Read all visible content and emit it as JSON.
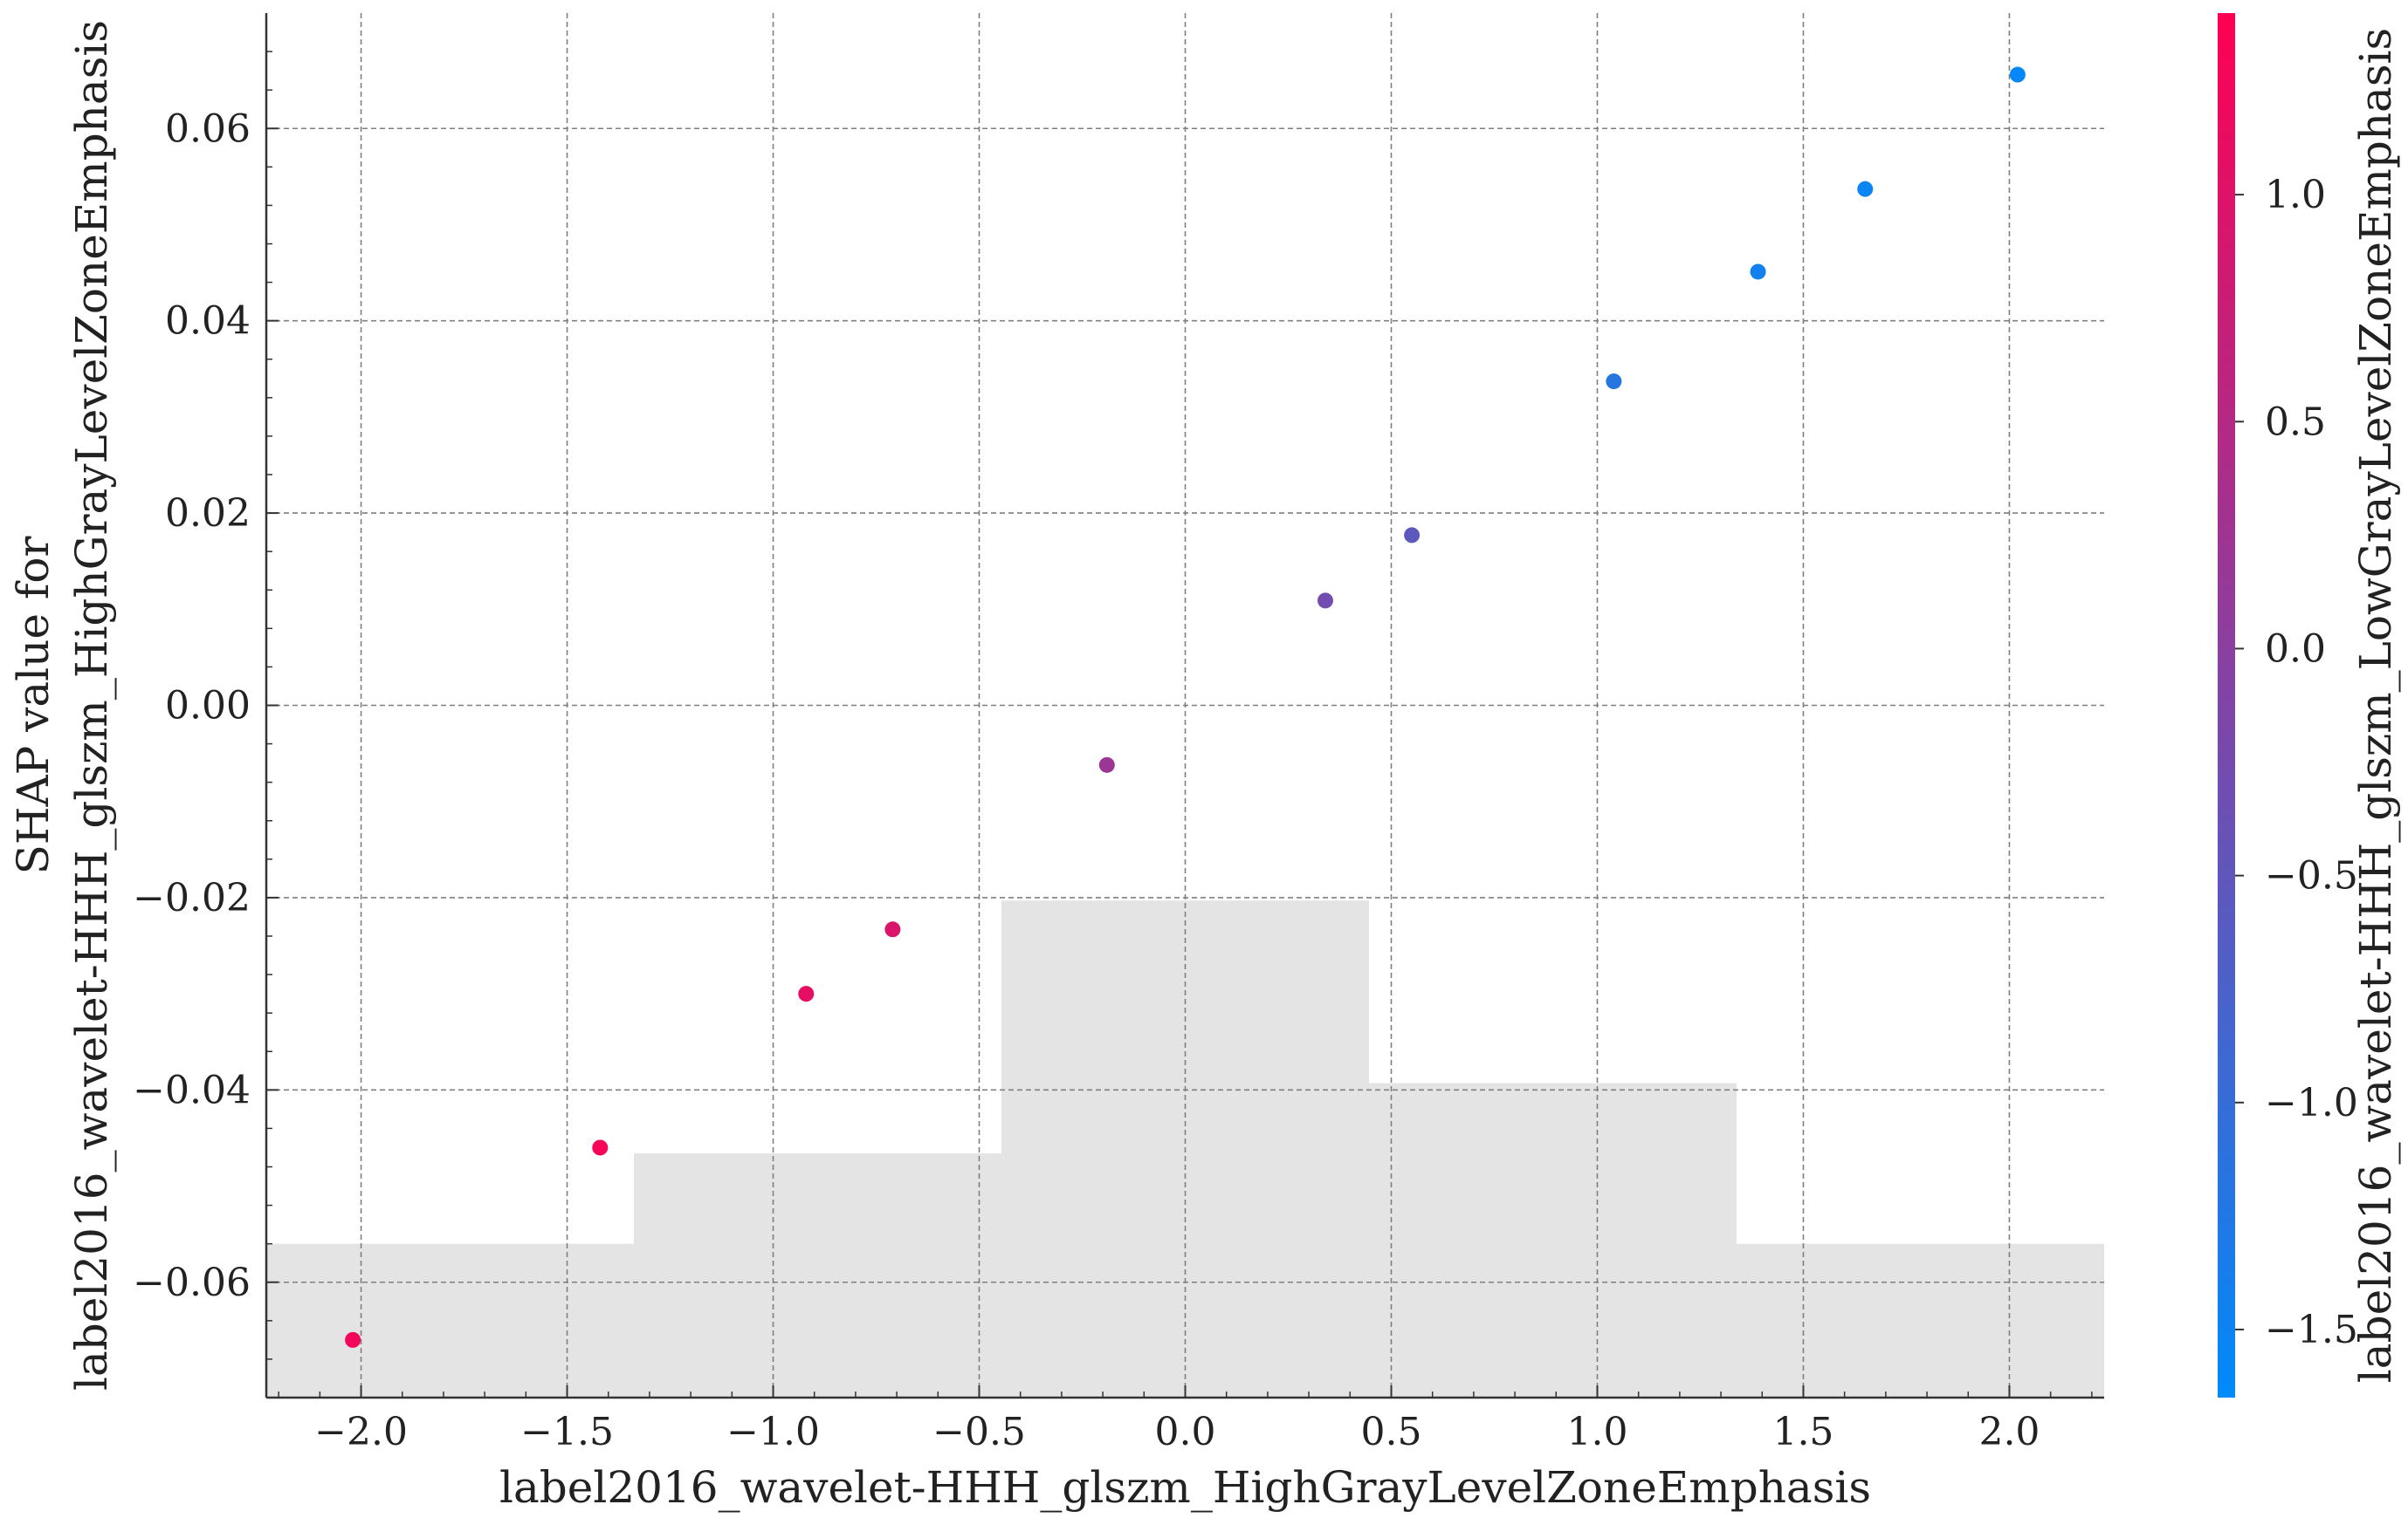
{
  "chart_data": {
    "type": "scatter",
    "xlabel": "label2016_wavelet-HHH_glszm_HighGrayLevelZoneEmphasis",
    "ylabel_lines": [
      "SHAP value for",
      "label2016_wavelet-HHH_glszm_HighGrayLevelZoneEmphasis"
    ],
    "xlim": [
      -2.23,
      2.23
    ],
    "ylim": [
      -0.072,
      0.072
    ],
    "xticks": [
      -2.0,
      -1.5,
      -1.0,
      -0.5,
      0.0,
      0.5,
      1.0,
      1.5,
      2.0
    ],
    "xtick_labels": [
      "−2.0",
      "−1.5",
      "−1.0",
      "−0.5",
      "0.0",
      "0.5",
      "1.0",
      "1.5",
      "2.0"
    ],
    "yticks": [
      -0.06,
      -0.04,
      -0.02,
      0.0,
      0.02,
      0.04,
      0.06
    ],
    "ytick_labels": [
      "−0.06",
      "−0.04",
      "−0.02",
      "0.00",
      "0.02",
      "0.04",
      "0.06"
    ],
    "grid": true,
    "points": [
      {
        "x": -2.02,
        "y": -0.066,
        "c": 1.25
      },
      {
        "x": -1.42,
        "y": -0.046,
        "c": 1.3
      },
      {
        "x": -0.92,
        "y": -0.03,
        "c": 1.1
      },
      {
        "x": -0.71,
        "y": -0.0233,
        "c": 0.95
      },
      {
        "x": -0.19,
        "y": -0.0062,
        "c": 0.2
      },
      {
        "x": 0.34,
        "y": 0.0109,
        "c": -0.3
      },
      {
        "x": 0.55,
        "y": 0.0177,
        "c": -0.55
      },
      {
        "x": 1.04,
        "y": 0.0337,
        "c": -1.2
      },
      {
        "x": 1.39,
        "y": 0.0451,
        "c": -1.45
      },
      {
        "x": 1.65,
        "y": 0.0537,
        "c": -1.52
      },
      {
        "x": 2.02,
        "y": 0.0656,
        "c": -1.58
      }
    ],
    "histogram": {
      "edges": [
        -2.23,
        -1.338,
        -0.446,
        0.446,
        1.338,
        2.23
      ],
      "levels": [
        -0.056,
        -0.0466,
        -0.0203,
        -0.0393,
        -0.056
      ]
    },
    "colorbar": {
      "label": "label2016_wavelet-HHH_glszm_LowGrayLevelZoneEmphasis",
      "range": [
        -1.65,
        1.4
      ],
      "ticks": [
        1.0,
        0.5,
        0.0,
        -0.5,
        -1.0,
        -1.5
      ],
      "tick_labels": [
        "1.0",
        "0.5",
        "0.0",
        "−0.5",
        "−1.0",
        "−1.5"
      ],
      "color_low": "#008afb",
      "color_high": "#ff0052"
    },
    "colors": {
      "histogram_fill": "#e4e4e4",
      "grid": "#7f7f7f",
      "axis": "#333333"
    }
  }
}
